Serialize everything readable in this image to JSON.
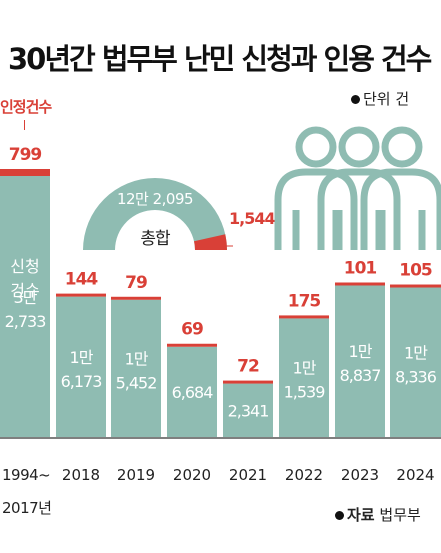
{
  "title": "30년간 법무부 난민 신청과 인용 건수",
  "unit_label": "단위 건",
  "source": {
    "prefix": "자료",
    "name": "법무부"
  },
  "legend_label": "인정건수",
  "colors": {
    "bar": "#8fbcb2",
    "accent": "#d94037",
    "label_dark": "#333333",
    "white": "#ffffff"
  },
  "chart_data": {
    "type": "bar",
    "categories": [
      "1994~ 2017년",
      "2018",
      "2019",
      "2020",
      "2021",
      "2022",
      "2023",
      "2024"
    ],
    "series": [
      {
        "name": "신청건수",
        "values": [
          32733,
          16173,
          15452,
          6684,
          2341,
          11539,
          18837,
          18336
        ],
        "labels": [
          [
            "3만",
            "2,733"
          ],
          [
            "1만",
            "6,173"
          ],
          [
            "1만",
            "5,452"
          ],
          [
            "6,684"
          ],
          [
            "2,341"
          ],
          [
            "1만",
            "1,539"
          ],
          [
            "1만",
            "8,837"
          ],
          [
            "1만",
            "8,336"
          ]
        ]
      },
      {
        "name": "인정건수",
        "values": [
          799,
          144,
          79,
          69,
          72,
          175,
          101,
          105
        ]
      }
    ],
    "first_bar_label": [
      "신청",
      "건수"
    ],
    "gauge": {
      "label": "총합",
      "total": 122095,
      "total_label": "12만 2,095",
      "accepted": 1544,
      "accepted_label": "1,544"
    },
    "grid": false
  }
}
